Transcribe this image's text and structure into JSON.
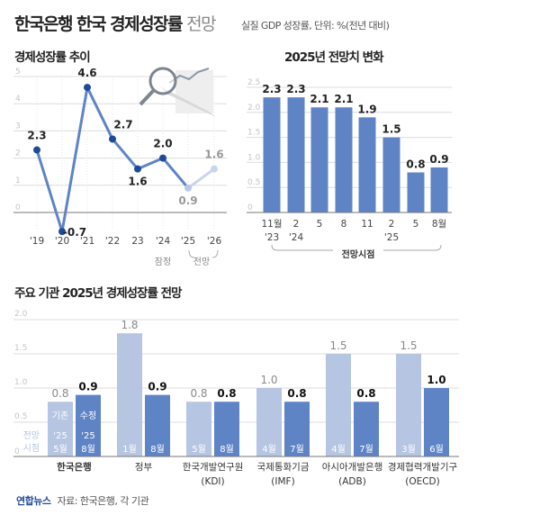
{
  "title": {
    "main": "한국은행 한국 경제성장률",
    "light": "전망",
    "subtitle": "실질 GDP 성장률, 단위: %(전년 대비)"
  },
  "colors": {
    "dark_bar": "#5f84c6",
    "light_bar": "#b5c5e2",
    "line": "#5f84c6",
    "dot": "#1f4a9a",
    "forecast_line": "#c8d5ec",
    "grid": "#dcdcdc"
  },
  "chart_data": [
    {
      "type": "line",
      "title": "경제성장률 추이",
      "x": [
        "'19",
        "'20",
        "'21",
        "'22",
        "23",
        "'24",
        "'25",
        "'26"
      ],
      "values": [
        2.3,
        -0.7,
        4.6,
        2.7,
        1.6,
        2.0,
        0.9,
        1.6
      ],
      "labels": [
        "2.3",
        "-0.7",
        "4.6",
        "2.7",
        "1.6",
        "2.0",
        "0.9",
        "1.6"
      ],
      "yticks": [
        "0",
        "1",
        "2",
        "3",
        "4",
        "5"
      ],
      "ylim": [
        -0.9,
        5
      ],
      "grid": true,
      "annotations": {
        "provisional": "잠정",
        "forecast": "전망"
      },
      "icon": "magnifier-chart-icon"
    },
    {
      "type": "bar",
      "title": "2025년 전망치 변화",
      "categories": [
        [
          "11월",
          "'23"
        ],
        [
          "2",
          "'24"
        ],
        [
          "5",
          ""
        ],
        [
          "8",
          ""
        ],
        [
          "11",
          ""
        ],
        [
          "2",
          "'25"
        ],
        [
          "5",
          ""
        ],
        [
          "8월",
          ""
        ]
      ],
      "values": [
        2.3,
        2.3,
        2.1,
        2.1,
        1.9,
        1.5,
        0.8,
        0.9
      ],
      "labels": [
        "2.3",
        "2.3",
        "2.1",
        "2.1",
        "1.9",
        "1.5",
        "0.8",
        "0.9"
      ],
      "yticks": [
        "0",
        "0.5",
        "1.0",
        "1.5",
        "2.0",
        "2.5"
      ],
      "ylim": [
        0,
        2.5
      ],
      "grid": true,
      "xlabel": "전망시점"
    },
    {
      "type": "bar",
      "title": "주요 기관 2025년 경제성장률 전망",
      "yticks": [
        "0",
        "0.5",
        "1.0",
        "1.5",
        "2.0"
      ],
      "ylim": [
        0,
        2.0
      ],
      "grid": true,
      "legend": {
        "axis_label": [
          "전망",
          "시점"
        ],
        "previous": "기존",
        "revised": "수정"
      },
      "groups": [
        {
          "name": [
            "한국은행",
            ""
          ],
          "highlight": true,
          "previous": {
            "value": 0.8,
            "label": "0.8",
            "when": [
              "'25",
              "5월"
            ]
          },
          "revised": {
            "value": 0.9,
            "label": "0.9",
            "when": [
              "'25",
              "8월"
            ]
          }
        },
        {
          "name": [
            "정부",
            ""
          ],
          "previous": {
            "value": 1.8,
            "label": "1.8",
            "when": [
              "",
              "1월"
            ]
          },
          "revised": {
            "value": 0.9,
            "label": "0.9",
            "when": [
              "",
              "8월"
            ]
          }
        },
        {
          "name": [
            "한국개발연구원",
            "(KDI)"
          ],
          "previous": {
            "value": 0.8,
            "label": "0.8",
            "when": [
              "",
              "5월"
            ]
          },
          "revised": {
            "value": 0.8,
            "label": "0.8",
            "when": [
              "",
              "8월"
            ]
          }
        },
        {
          "name": [
            "국제통화기금",
            "(IMF)"
          ],
          "previous": {
            "value": 1.0,
            "label": "1.0",
            "when": [
              "",
              "4월"
            ]
          },
          "revised": {
            "value": 0.8,
            "label": "0.8",
            "when": [
              "",
              "7월"
            ]
          }
        },
        {
          "name": [
            "아시아개발은행",
            "(ADB)"
          ],
          "previous": {
            "value": 1.5,
            "label": "1.5",
            "when": [
              "",
              "4월"
            ]
          },
          "revised": {
            "value": 0.8,
            "label": "0.8",
            "when": [
              "",
              "7월"
            ]
          }
        },
        {
          "name": [
            "경제협력개발기구",
            "(OECD)"
          ],
          "previous": {
            "value": 1.5,
            "label": "1.5",
            "when": [
              "",
              "3월"
            ]
          },
          "revised": {
            "value": 1.0,
            "label": "1.0",
            "when": [
              "",
              "6월"
            ]
          }
        }
      ]
    }
  ],
  "footer": {
    "logo": "연합뉴스",
    "source": "자료: 한국은행, 각 기관"
  }
}
